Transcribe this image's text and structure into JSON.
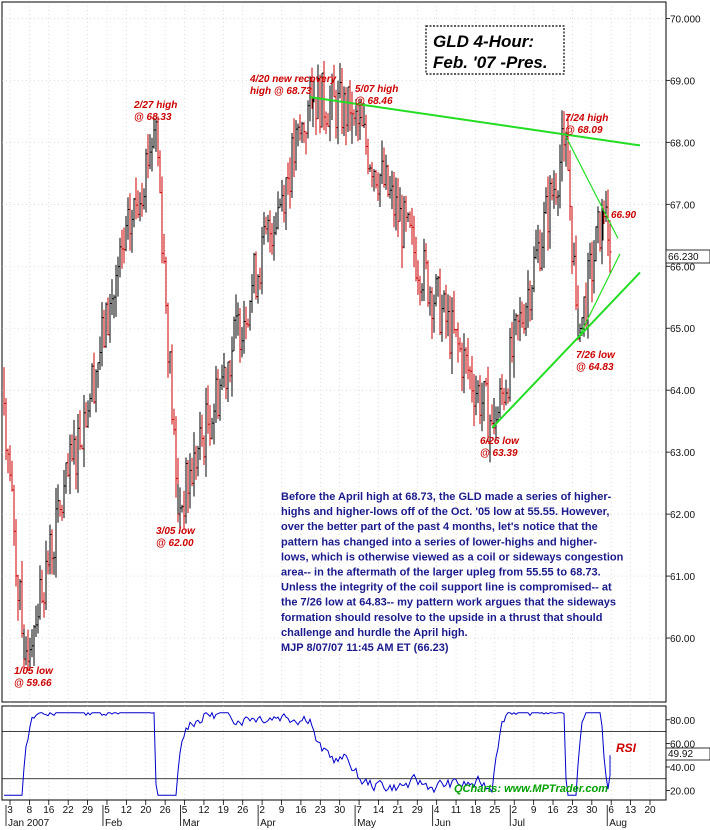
{
  "chart_data": {
    "type": "line",
    "title": "GLD 4-Hour:",
    "subtitle": "Feb. '07 -Pres.",
    "price_axis": {
      "ylim": [
        59.0,
        70.2
      ],
      "ticks": [
        "70.000",
        "69.00",
        "68.00",
        "67.00",
        "66.00",
        "65.00",
        "64.00",
        "63.00",
        "62.00",
        "61.00",
        "60.00"
      ],
      "tick_values": [
        70,
        69,
        68,
        67,
        66,
        65,
        64,
        63,
        62,
        61,
        60
      ],
      "current_label": "66.230",
      "current_value": 66.23
    },
    "x_axis": {
      "day_ticks": [
        "3",
        "8",
        "16",
        "22",
        "29",
        "5",
        "12",
        "20",
        "26",
        "5",
        "12",
        "19",
        "26",
        "2",
        "9",
        "16",
        "23",
        "30",
        "7",
        "14",
        "21",
        "29",
        "4",
        "11",
        "18",
        "25",
        "2",
        "9",
        "16",
        "23",
        "30",
        "6",
        "13",
        "20"
      ],
      "month_labels": [
        "Jan 2007",
        "Feb",
        "Mar",
        "Apr",
        "May",
        "Jun",
        "Jul",
        "Aug"
      ]
    },
    "anchors": [
      {
        "label": "1/05 low",
        "value": 59.66
      },
      {
        "label": "2/27 high",
        "value": 68.33
      },
      {
        "label": "3/05 low",
        "value": 62.0
      },
      {
        "label": "4/20 new recovery high",
        "value": 68.73
      },
      {
        "label": "5/07 high",
        "value": 68.46
      },
      {
        "label": "6/26 low",
        "value": 63.39
      },
      {
        "label": "7/24 high",
        "value": 68.09
      },
      {
        "label": "7/26 low",
        "value": 64.83
      },
      {
        "label": "last",
        "value": 66.9
      },
      {
        "label": "current",
        "value": 66.23
      }
    ],
    "annotations": [
      {
        "lines": [
          "2/27 high",
          "@ 68.33"
        ]
      },
      {
        "lines": [
          "4/20 new recovery",
          "high @ 68.73"
        ]
      },
      {
        "lines": [
          "5/07 high",
          "@ 68.46"
        ]
      },
      {
        "lines": [
          "7/24 high",
          "@ 68.09"
        ]
      },
      {
        "lines": [
          "66.90"
        ]
      },
      {
        "lines": [
          "7/26 low",
          "@ 64.83"
        ]
      },
      {
        "lines": [
          "6/26 low",
          "@ 63.39"
        ]
      },
      {
        "lines": [
          "3/05 low",
          "@ 62.00"
        ]
      },
      {
        "lines": [
          "1/05 low",
          "@ 59.66"
        ]
      }
    ],
    "trendlines": [
      {
        "name": "resistance",
        "from": 68.73,
        "to": 67.95
      },
      {
        "name": "support",
        "from": 63.39,
        "to": 65.9
      },
      {
        "name": "coil-upper",
        "from": 68.09,
        "to": 66.45
      },
      {
        "name": "coil-lower",
        "from": 64.83,
        "to": 66.2
      }
    ],
    "rsi": {
      "label": "RSI",
      "current_label": "49.92",
      "current": 49.92,
      "ticks": [
        "80.00",
        "60.00",
        "40.00",
        "20.00"
      ],
      "tick_values": [
        80,
        60,
        40,
        20
      ],
      "bands": [
        70,
        30
      ],
      "ylim": [
        12,
        90
      ]
    }
  },
  "commentary": [
    "Before the April high at 68.73, the GLD made a series of higher-",
    "highs and higher-lows off of the Oct. '05 low at 55.55. However,",
    "over the better part of the past 4 months, let's notice that the",
    "pattern has changed into a series of lower-highs and higher-",
    "lows, which is otherwise viewed as a coil or sideways congestion",
    "area-- in the aftermath of the larger upleg from 55.55 to 68.73.",
    "Unless the integrity of the coil support line is compromised-- at",
    "the 7/26 low at 64.83-- my pattern work argues that the sideways",
    "formation should resolve to the upside in a thrust that should",
    "challenge and hurdle the April high.",
    "MJP  8/07/07 11:45 AM ET (66.23)"
  ],
  "credit": "QCharts: www.MPTrader.com",
  "colors": {
    "up_bar": "#000000",
    "down_bar": "#cc0000",
    "trendline": "#22dd22",
    "annotation": "#cc0000",
    "commentary": "#1a1a8c",
    "rsi_line": "#0000cc"
  }
}
